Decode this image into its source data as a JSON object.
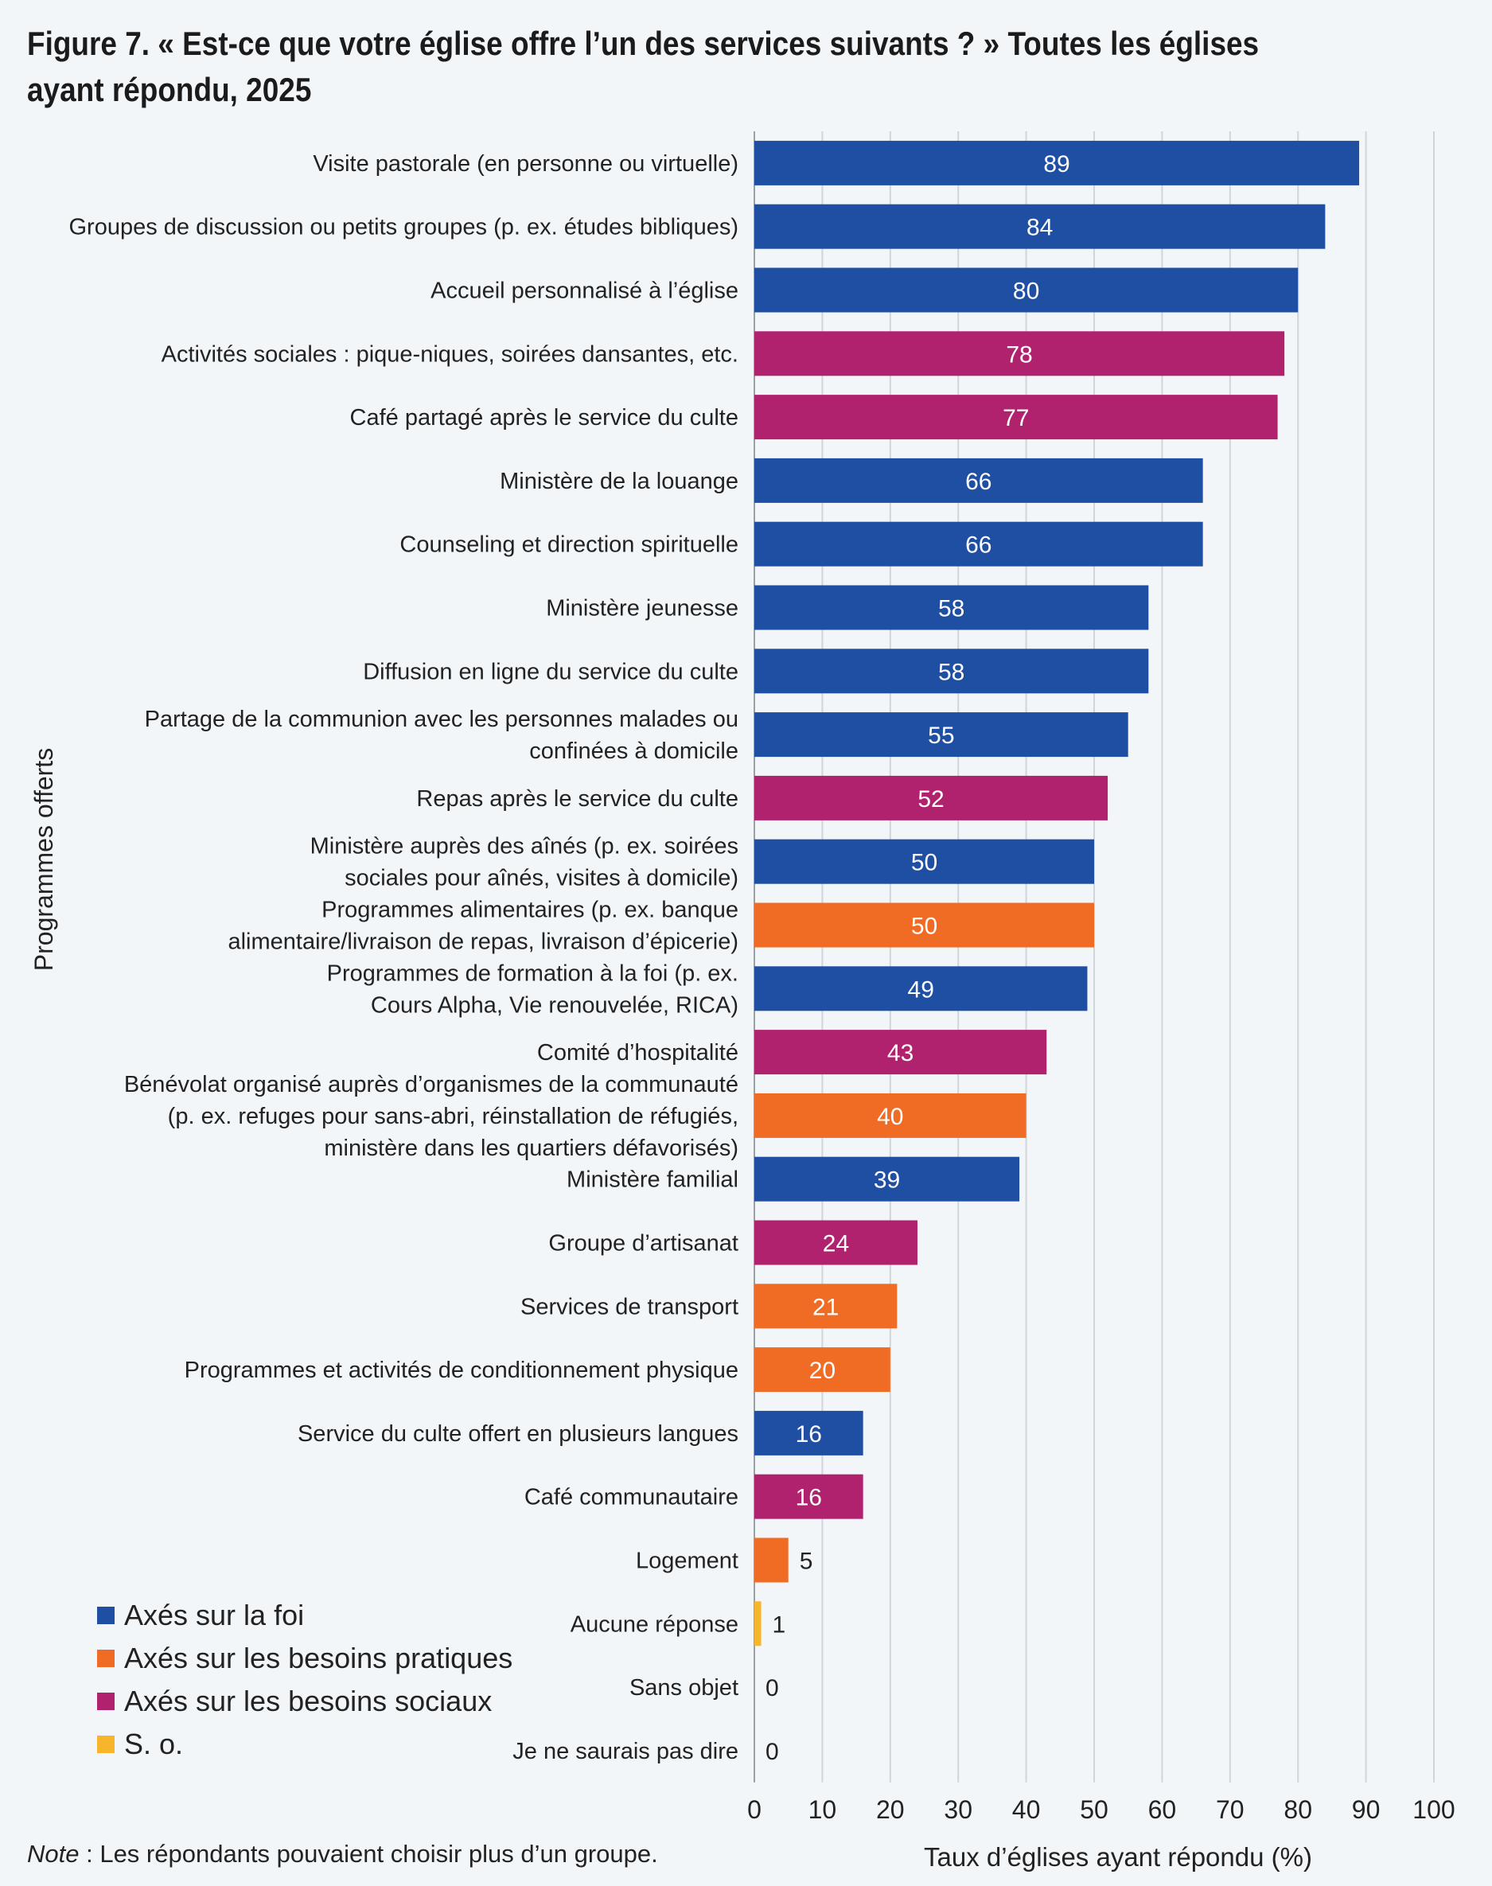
{
  "title": "Figure 7. « Est-ce que votre église offre l’un des services suivants ? » Toutes les églises ayant répondu, 2025",
  "note": {
    "label": "Note",
    "text": " : Les répondants pouvaient choisir plus d’un groupe."
  },
  "colors": {
    "faith": "#1e4fa3",
    "practical": "#f06b23",
    "social": "#b1226e",
    "na": "#f7b52c",
    "grid": "#d0d5da",
    "background": "#f2f6f9"
  },
  "chart_data": {
    "type": "bar",
    "orientation": "horizontal",
    "title": "Figure 7. « Est-ce que votre église offre l’un des services suivants ? » Toutes les églises ayant répondu, 2025",
    "xlabel": "Taux d’églises ayant répondu (%)",
    "ylabel": "Programmes offerts",
    "xlim": [
      0,
      100
    ],
    "xticks": [
      0,
      10,
      20,
      30,
      40,
      50,
      60,
      70,
      80,
      90,
      100
    ],
    "grid": "vertical",
    "legend_position": "bottom-left",
    "legend": [
      {
        "key": "faith",
        "label": "Axés sur la foi"
      },
      {
        "key": "practical",
        "label": "Axés sur les besoins pratiques"
      },
      {
        "key": "social",
        "label": "Axés sur les besoins sociaux"
      },
      {
        "key": "na",
        "label": "S. o."
      }
    ],
    "bars": [
      {
        "label": [
          "Visite pastorale (en personne ou virtuelle)"
        ],
        "value": 89,
        "group": "faith"
      },
      {
        "label": [
          "Groupes de discussion ou petits groupes (p. ex. études bibliques)"
        ],
        "value": 84,
        "group": "faith"
      },
      {
        "label": [
          "Accueil personnalisé à l’église"
        ],
        "value": 80,
        "group": "faith"
      },
      {
        "label": [
          "Activités sociales : pique-niques, soirées dansantes, etc."
        ],
        "value": 78,
        "group": "social"
      },
      {
        "label": [
          "Café partagé après le service du culte"
        ],
        "value": 77,
        "group": "social"
      },
      {
        "label": [
          "Ministère de la louange"
        ],
        "value": 66,
        "group": "faith"
      },
      {
        "label": [
          "Counseling et direction spirituelle"
        ],
        "value": 66,
        "group": "faith"
      },
      {
        "label": [
          "Ministère jeunesse"
        ],
        "value": 58,
        "group": "faith"
      },
      {
        "label": [
          "Diffusion en ligne du service du culte"
        ],
        "value": 58,
        "group": "faith"
      },
      {
        "label": [
          "Partage de la communion avec les personnes malades ou",
          "confinées à domicile"
        ],
        "value": 55,
        "group": "faith"
      },
      {
        "label": [
          "Repas après le service du culte"
        ],
        "value": 52,
        "group": "social"
      },
      {
        "label": [
          "Ministère auprès des aînés (p. ex. soirées",
          "sociales pour aînés, visites à domicile)"
        ],
        "value": 50,
        "group": "faith"
      },
      {
        "label": [
          "Programmes alimentaires (p. ex. banque",
          "alimentaire/livraison de repas, livraison d’épicerie)"
        ],
        "value": 50,
        "group": "practical"
      },
      {
        "label": [
          "Programmes de formation à la foi (p. ex.",
          "Cours Alpha, Vie renouvelée, RICA)"
        ],
        "value": 49,
        "group": "faith"
      },
      {
        "label": [
          "Comité d’hospitalité"
        ],
        "value": 43,
        "group": "social"
      },
      {
        "label": [
          "Bénévolat organisé auprès d’organismes de la communauté",
          "(p. ex. refuges pour sans-abri, réinstallation de réfugiés,",
          "ministère dans les quartiers défavorisés)"
        ],
        "value": 40,
        "group": "practical"
      },
      {
        "label": [
          "Ministère familial"
        ],
        "value": 39,
        "group": "faith"
      },
      {
        "label": [
          "Groupe d’artisanat"
        ],
        "value": 24,
        "group": "social"
      },
      {
        "label": [
          "Services de transport"
        ],
        "value": 21,
        "group": "practical"
      },
      {
        "label": [
          "Programmes et activités de conditionnement physique"
        ],
        "value": 20,
        "group": "practical"
      },
      {
        "label": [
          "Service du culte offert en plusieurs langues"
        ],
        "value": 16,
        "group": "faith"
      },
      {
        "label": [
          "Café communautaire"
        ],
        "value": 16,
        "group": "social"
      },
      {
        "label": [
          "Logement"
        ],
        "value": 5,
        "group": "practical"
      },
      {
        "label": [
          "Aucune réponse"
        ],
        "value": 1,
        "group": "na"
      },
      {
        "label": [
          "Sans objet"
        ],
        "value": 0,
        "group": "na"
      },
      {
        "label": [
          "Je ne saurais pas dire"
        ],
        "value": 0,
        "group": "na"
      }
    ]
  }
}
